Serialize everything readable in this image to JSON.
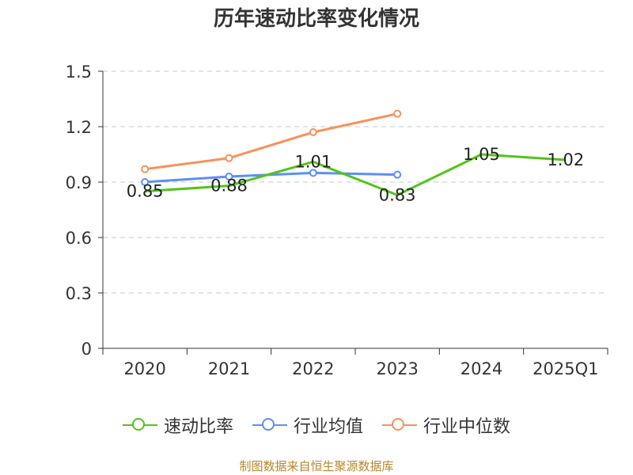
{
  "chart_data": {
    "type": "line",
    "title": "历年速动比率变化情况",
    "categories": [
      "2020",
      "2021",
      "2022",
      "2023",
      "2024",
      "2025Q1"
    ],
    "ylim": [
      0,
      1.5
    ],
    "yticks": [
      "0",
      "0.3",
      "0.6",
      "0.9",
      "1.2",
      "1.5"
    ],
    "grid": true,
    "legend_position": "bottom",
    "series": [
      {
        "name": "速动比率",
        "color": "#52c41a",
        "values": [
          0.85,
          0.88,
          1.01,
          0.83,
          1.05,
          1.02
        ],
        "labels": [
          "0.85",
          "0.88",
          "1.01",
          "0.83",
          "1.05",
          "1.02"
        ]
      },
      {
        "name": "行业均值",
        "color": "#5b8ff9",
        "values": [
          0.9,
          0.93,
          0.95,
          0.94,
          null,
          null
        ]
      },
      {
        "name": "行业中位数",
        "color": "#f6925c",
        "values": [
          0.97,
          1.03,
          1.17,
          1.27,
          null,
          null
        ]
      }
    ]
  },
  "footer": "制图数据来自恒生聚源数据库"
}
